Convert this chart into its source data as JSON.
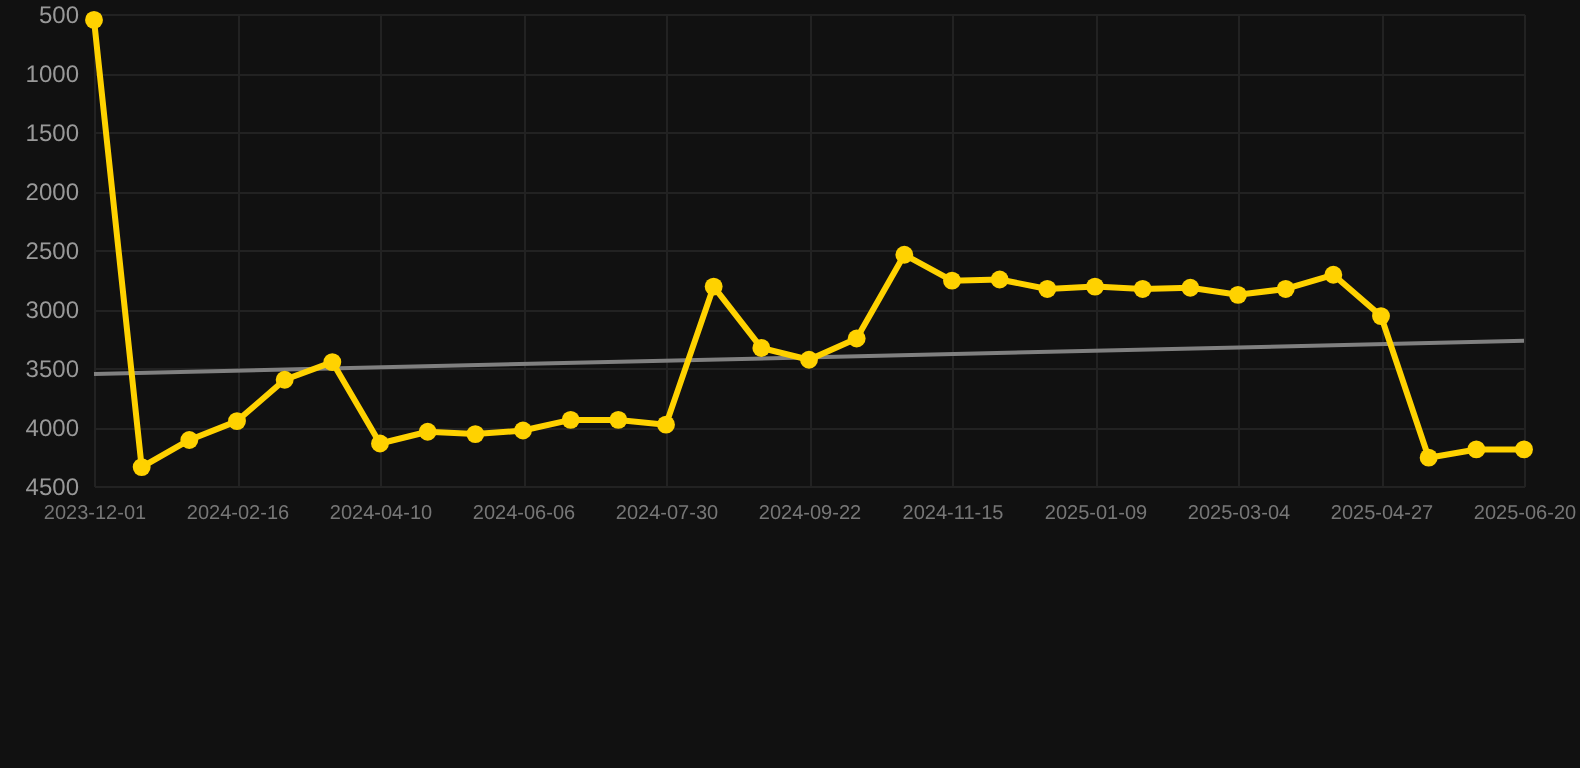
{
  "chart_data": {
    "type": "line",
    "categories": [
      "2023-12-01",
      null,
      null,
      "2024-02-16",
      null,
      null,
      "2024-04-10",
      null,
      null,
      "2024-06-06",
      null,
      null,
      "2024-07-30",
      null,
      null,
      "2024-09-22",
      null,
      null,
      "2024-11-15",
      null,
      null,
      "2025-01-09",
      null,
      null,
      "2025-03-04",
      null,
      null,
      "2025-04-27",
      null,
      null,
      "2025-06-20"
    ],
    "series": [
      {
        "color": "#ffd200",
        "marker": "circle",
        "values": [
          550,
          4340,
          4110,
          3950,
          3600,
          3450,
          4140,
          4040,
          4060,
          4030,
          3940,
          3940,
          3980,
          2810,
          3330,
          3430,
          3250,
          2540,
          2760,
          2750,
          2830,
          2810,
          2830,
          2820,
          2880,
          2830,
          2710,
          3060,
          4260,
          4190,
          4190
        ]
      },
      {
        "color": "#808080",
        "marker": "none",
        "values": [
          3550,
          null,
          null,
          null,
          null,
          null,
          null,
          null,
          null,
          null,
          null,
          null,
          null,
          null,
          null,
          null,
          null,
          null,
          null,
          null,
          null,
          null,
          null,
          null,
          null,
          null,
          null,
          null,
          null,
          null,
          3270
        ]
      }
    ],
    "ylim": [
      4500,
      500
    ],
    "yticks": [
      500,
      1000,
      1500,
      2000,
      2500,
      3000,
      3500,
      4000,
      4500
    ],
    "grid": true
  }
}
